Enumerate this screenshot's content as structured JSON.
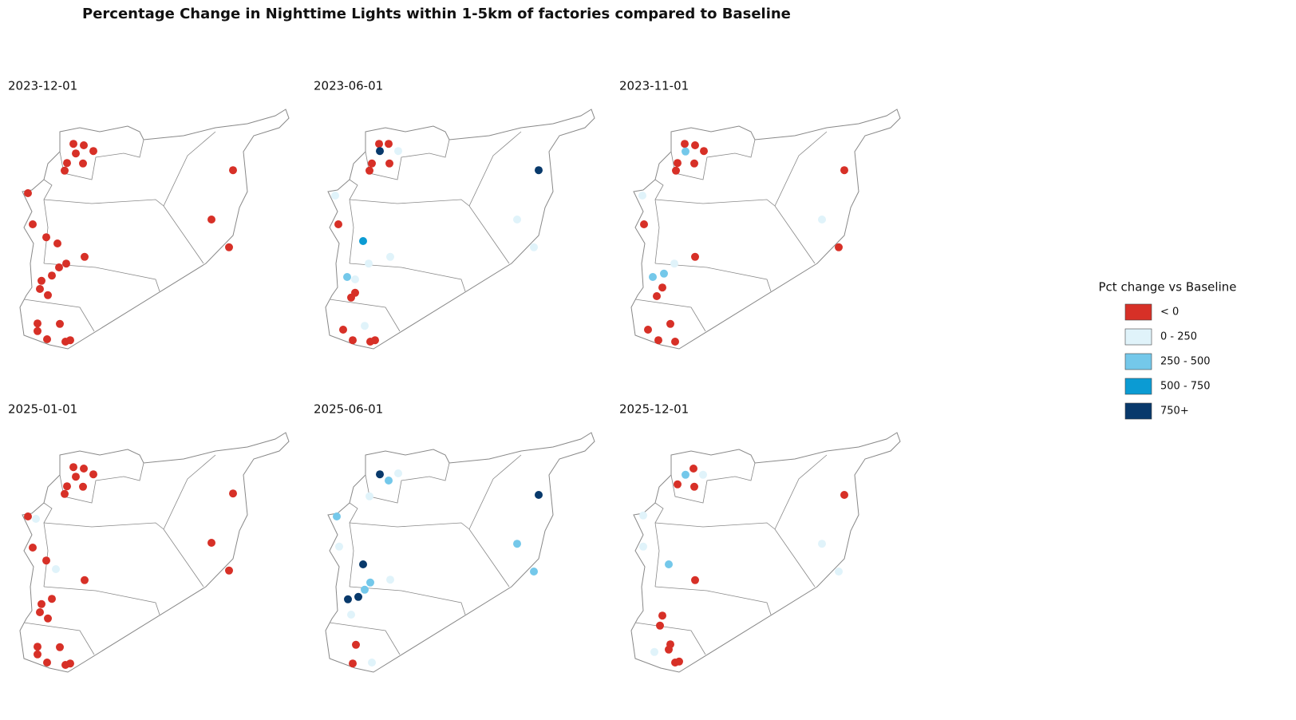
{
  "chart_data": {
    "type": "map",
    "title": "Percentage Change in Nighttime Lights within 1-5km of factories compared to Baseline",
    "legend": {
      "title": "Pct change vs Baseline",
      "bins": [
        {
          "label": "< 0",
          "color": "#d73027"
        },
        {
          "label": "0 - 250",
          "color": "#e0f3fa"
        },
        {
          "label": "250 - 500",
          "color": "#74c8ea"
        },
        {
          "label": "500 - 750",
          "color": "#0b9bd3"
        },
        {
          "label": "750+",
          "color": "#08396b"
        }
      ]
    },
    "panels": [
      {
        "title": "2023-12-01",
        "points": [
          [
            36.94,
            36.63,
            0
          ],
          [
            37.2,
            36.6,
            0
          ],
          [
            37.44,
            36.48,
            0
          ],
          [
            37.0,
            36.43,
            0
          ],
          [
            36.78,
            36.23,
            0
          ],
          [
            37.18,
            36.22,
            0
          ],
          [
            36.72,
            36.07,
            0
          ],
          [
            35.8,
            35.6,
            0
          ],
          [
            40.94,
            36.08,
            0
          ],
          [
            40.4,
            35.05,
            0
          ],
          [
            40.84,
            34.47,
            0
          ],
          [
            35.92,
            34.95,
            0
          ],
          [
            36.26,
            34.68,
            0
          ],
          [
            36.54,
            34.55,
            0
          ],
          [
            36.76,
            34.13,
            0
          ],
          [
            37.22,
            34.27,
            0
          ],
          [
            36.58,
            34.05,
            0
          ],
          [
            36.14,
            33.77,
            0
          ],
          [
            36.1,
            33.6,
            0
          ],
          [
            36.4,
            33.88,
            0
          ],
          [
            36.3,
            33.47,
            0
          ],
          [
            36.04,
            32.88,
            0
          ],
          [
            36.6,
            32.87,
            0
          ],
          [
            36.04,
            32.72,
            0
          ],
          [
            36.28,
            32.55,
            0
          ],
          [
            36.74,
            32.5,
            0
          ],
          [
            36.86,
            32.53,
            0
          ]
        ]
      },
      {
        "title": "2023-06-01",
        "points": [
          [
            35.84,
            35.55,
            1
          ],
          [
            37.42,
            36.48,
            1
          ],
          [
            36.58,
            32.83,
            1
          ],
          [
            36.34,
            33.8,
            1
          ],
          [
            40.4,
            35.05,
            1
          ],
          [
            40.82,
            34.47,
            1
          ],
          [
            36.68,
            34.13,
            1
          ],
          [
            37.22,
            34.27,
            1
          ],
          [
            36.94,
            36.63,
            0
          ],
          [
            37.18,
            36.63,
            0
          ],
          [
            36.96,
            36.48,
            4
          ],
          [
            36.76,
            36.22,
            0
          ],
          [
            36.7,
            36.07,
            0
          ],
          [
            37.2,
            36.22,
            0
          ],
          [
            40.94,
            36.08,
            4
          ],
          [
            35.92,
            34.95,
            0
          ],
          [
            36.54,
            34.6,
            3
          ],
          [
            36.14,
            33.85,
            2
          ],
          [
            36.34,
            33.52,
            0
          ],
          [
            36.24,
            33.42,
            0
          ],
          [
            36.04,
            32.75,
            0
          ],
          [
            36.28,
            32.53,
            0
          ],
          [
            36.72,
            32.5,
            0
          ],
          [
            36.84,
            32.53,
            0
          ]
        ]
      },
      {
        "title": "2023-11-01",
        "points": [
          [
            35.88,
            35.55,
            1
          ],
          [
            36.68,
            34.13,
            1
          ],
          [
            40.38,
            35.05,
            1
          ],
          [
            36.94,
            36.63,
            0
          ],
          [
            37.2,
            36.6,
            0
          ],
          [
            37.42,
            36.48,
            0
          ],
          [
            36.96,
            36.47,
            2
          ],
          [
            36.76,
            36.23,
            0
          ],
          [
            37.18,
            36.22,
            0
          ],
          [
            36.72,
            36.07,
            0
          ],
          [
            40.94,
            36.08,
            0
          ],
          [
            40.8,
            34.47,
            0
          ],
          [
            35.92,
            34.95,
            0
          ],
          [
            37.2,
            34.27,
            0
          ],
          [
            36.42,
            33.92,
            2
          ],
          [
            36.14,
            33.85,
            2
          ],
          [
            36.38,
            33.63,
            0
          ],
          [
            36.24,
            33.45,
            0
          ],
          [
            36.02,
            32.75,
            0
          ],
          [
            36.58,
            32.87,
            0
          ],
          [
            36.28,
            32.53,
            0
          ],
          [
            36.7,
            32.5,
            0
          ]
        ]
      },
      {
        "title": "2025-01-01",
        "points": [
          [
            36.0,
            35.55,
            1
          ],
          [
            36.5,
            34.5,
            1
          ],
          [
            36.94,
            36.63,
            0
          ],
          [
            37.2,
            36.6,
            0
          ],
          [
            37.44,
            36.48,
            0
          ],
          [
            37.0,
            36.43,
            0
          ],
          [
            36.78,
            36.23,
            0
          ],
          [
            37.18,
            36.22,
            0
          ],
          [
            36.72,
            36.07,
            0
          ],
          [
            35.8,
            35.6,
            0
          ],
          [
            40.94,
            36.08,
            0
          ],
          [
            40.4,
            35.05,
            0
          ],
          [
            40.84,
            34.47,
            0
          ],
          [
            35.92,
            34.95,
            0
          ],
          [
            36.26,
            34.68,
            0
          ],
          [
            37.22,
            34.27,
            0
          ],
          [
            36.14,
            33.77,
            0
          ],
          [
            36.1,
            33.6,
            0
          ],
          [
            36.4,
            33.88,
            0
          ],
          [
            36.3,
            33.47,
            0
          ],
          [
            36.04,
            32.88,
            0
          ],
          [
            36.6,
            32.87,
            0
          ],
          [
            36.04,
            32.72,
            0
          ],
          [
            36.28,
            32.55,
            0
          ],
          [
            36.74,
            32.5,
            0
          ],
          [
            36.86,
            32.53,
            0
          ]
        ]
      },
      {
        "title": "2025-06-01",
        "points": [
          [
            37.42,
            36.5,
            1
          ],
          [
            37.22,
            34.28,
            1
          ],
          [
            36.24,
            33.55,
            1
          ],
          [
            36.76,
            32.55,
            1
          ],
          [
            35.94,
            34.97,
            1
          ],
          [
            36.7,
            36.02,
            1
          ],
          [
            36.96,
            36.48,
            4
          ],
          [
            37.18,
            36.35,
            2
          ],
          [
            40.94,
            36.05,
            4
          ],
          [
            40.4,
            35.03,
            2
          ],
          [
            40.82,
            34.45,
            2
          ],
          [
            35.88,
            35.6,
            2
          ],
          [
            36.54,
            34.6,
            4
          ],
          [
            36.72,
            34.22,
            2
          ],
          [
            36.42,
            33.92,
            4
          ],
          [
            36.16,
            33.87,
            4
          ],
          [
            36.58,
            34.07,
            2
          ],
          [
            36.36,
            32.92,
            0
          ],
          [
            36.28,
            32.53,
            0
          ]
        ]
      },
      {
        "title": "2025-12-01",
        "points": [
          [
            37.4,
            36.47,
            1
          ],
          [
            40.38,
            35.03,
            1
          ],
          [
            40.8,
            34.45,
            1
          ],
          [
            35.9,
            34.97,
            1
          ],
          [
            36.18,
            32.77,
            1
          ],
          [
            35.9,
            35.62,
            1
          ],
          [
            37.16,
            36.6,
            0
          ],
          [
            36.96,
            36.47,
            2
          ],
          [
            36.76,
            36.27,
            0
          ],
          [
            37.18,
            36.22,
            0
          ],
          [
            40.94,
            36.05,
            0
          ],
          [
            37.2,
            34.27,
            0
          ],
          [
            36.54,
            34.6,
            2
          ],
          [
            36.38,
            33.53,
            0
          ],
          [
            36.32,
            33.32,
            0
          ],
          [
            36.58,
            32.93,
            0
          ],
          [
            36.54,
            32.82,
            0
          ],
          [
            36.7,
            32.55,
            0
          ],
          [
            36.8,
            32.57,
            0
          ]
        ]
      }
    ]
  }
}
